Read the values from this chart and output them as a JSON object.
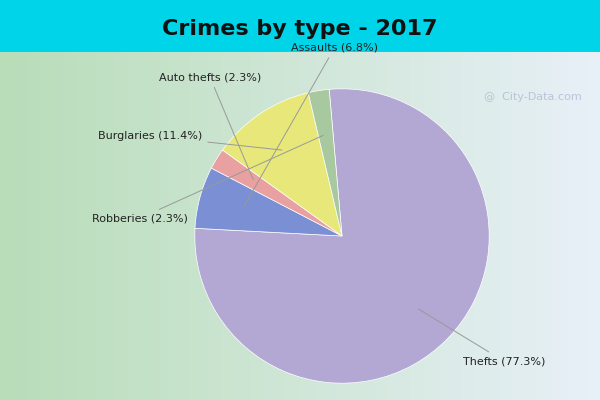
{
  "title": "Crimes by type - 2017",
  "slices": [
    {
      "label": "Thefts (77.3%)",
      "value": 77.3,
      "color": "#b3a8d4"
    },
    {
      "label": "Assaults (6.8%)",
      "value": 6.8,
      "color": "#7b8fd4"
    },
    {
      "label": "Auto thefts (2.3%)",
      "value": 2.3,
      "color": "#e8a0a0"
    },
    {
      "label": "Burglaries (11.4%)",
      "value": 11.4,
      "color": "#e8e87a"
    },
    {
      "label": "Robberies (2.3%)",
      "value": 2.3,
      "color": "#a8c8a0"
    }
  ],
  "background_top": "#00d4e8",
  "background_left": "#b8ddb8",
  "background_right": "#e8e8f0",
  "title_fontsize": 16,
  "watermark": "@  City-Data.com",
  "startangle": 95
}
